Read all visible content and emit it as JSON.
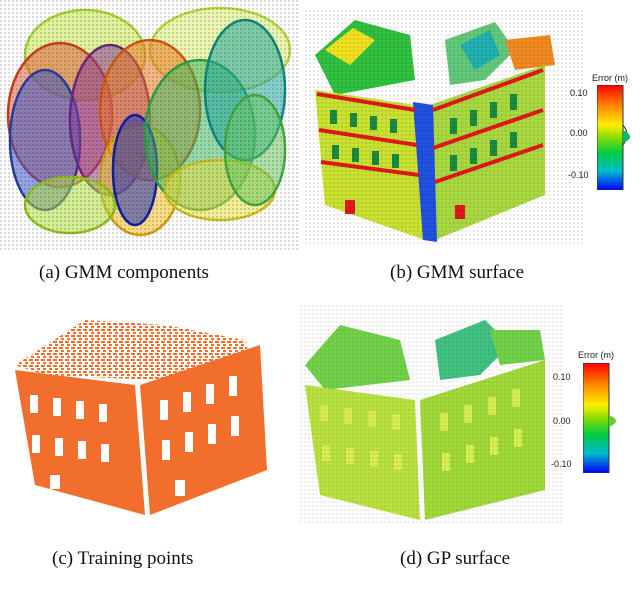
{
  "figure": {
    "panels": [
      {
        "id": "a",
        "caption": "(a) GMM components"
      },
      {
        "id": "b",
        "caption": "(b) GMM surface"
      },
      {
        "id": "c",
        "caption": "(c) Training points"
      },
      {
        "id": "d",
        "caption": "(d) GP surface"
      }
    ],
    "colorbar_b": {
      "title": "Error (m)",
      "ticks": [
        "0.10",
        "0.00",
        "-0.10"
      ]
    },
    "colorbar_d": {
      "title": "Error (m)",
      "ticks": [
        "0.10",
        "0.00",
        "-0.10"
      ]
    }
  },
  "colors": {
    "training_points": "#f05a10",
    "colormap": [
      "#ff0000",
      "#ff8800",
      "#ffee00",
      "#88dd00",
      "#00cc44",
      "#00bbcc",
      "#0000ff"
    ]
  }
}
